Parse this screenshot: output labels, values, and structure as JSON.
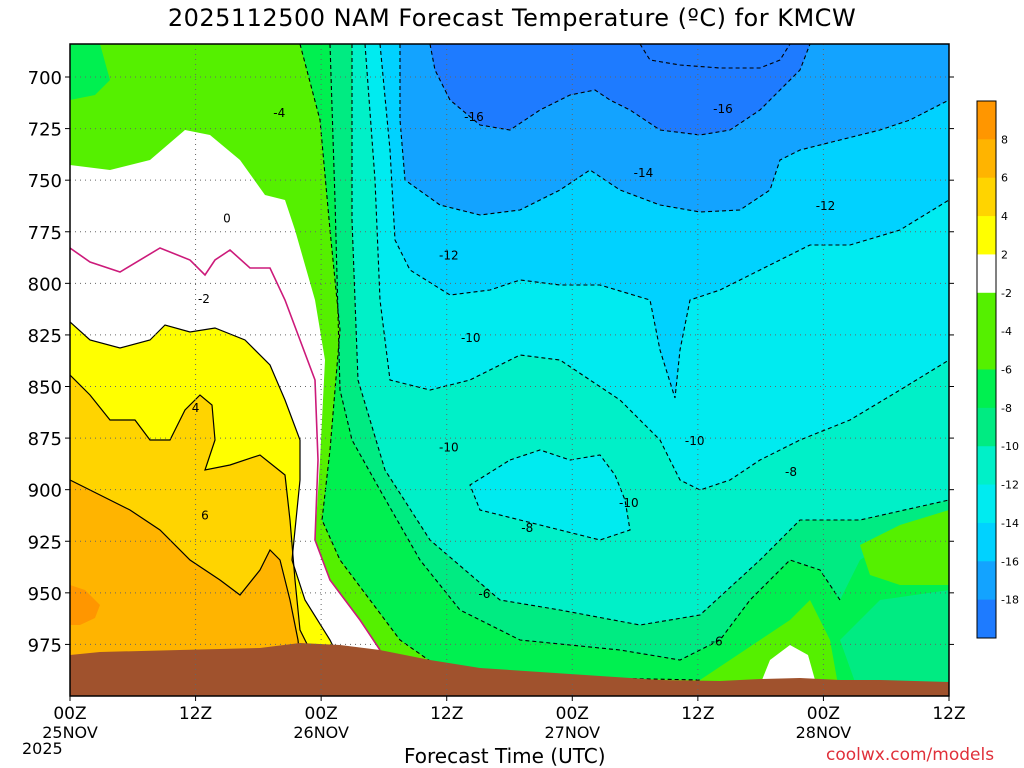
{
  "title": "2025112500 NAM Forecast Temperature (ºC) for KMCW",
  "x_axis_title": "Forecast Time (UTC)",
  "credit": "coolwx.com/models",
  "year_label": "2025",
  "colors": {
    "ground": "#a0522d",
    "c_m18": "#1e7bff",
    "c_m16": "#13a3ff",
    "c_m14": "#00d2ff",
    "c_m12": "#00ebf0",
    "c_m10": "#00f0c8",
    "c_m8": "#00eb82",
    "c_m6": "#00f050",
    "c_m4": "#55f000",
    "c_m2": "#ffffff",
    "c_p2": "#ffff00",
    "c_p4": "#ffd400",
    "c_p6": "#ffb400",
    "c_p8": "#ff9600",
    "zero_line": "#cc1a7a"
  },
  "chart_data": {
    "type": "heatmap",
    "title": "2025112500 NAM Forecast Temperature (ºC) for KMCW",
    "xlabel": "Forecast Time (UTC)",
    "ylabel": "",
    "x_ticks": [
      {
        "hour": 0,
        "label1": "00Z",
        "label2": "25NOV"
      },
      {
        "hour": 12,
        "label1": "12Z",
        "label2": ""
      },
      {
        "hour": 24,
        "label1": "00Z",
        "label2": "26NOV"
      },
      {
        "hour": 36,
        "label1": "12Z",
        "label2": ""
      },
      {
        "hour": 48,
        "label1": "00Z",
        "label2": "27NOV"
      },
      {
        "hour": 60,
        "label1": "12Z",
        "label2": ""
      },
      {
        "hour": 72,
        "label1": "00Z",
        "label2": "28NOV"
      },
      {
        "hour": 84,
        "label1": "12Z",
        "label2": ""
      }
    ],
    "y_ticks": [
      "700",
      "725",
      "750",
      "775",
      "800",
      "825",
      "850",
      "875",
      "900",
      "925",
      "950",
      "975"
    ],
    "y_range_hpa": [
      684,
      1000
    ],
    "x_range_hours": [
      0,
      84
    ],
    "colorbar": {
      "bounds": [
        -20,
        -18,
        -16,
        -14,
        -12,
        -10,
        -8,
        -6,
        -4,
        -2,
        2,
        4,
        6,
        8,
        10
      ],
      "colors": [
        "#1e7bff",
        "#13a3ff",
        "#00d2ff",
        "#00ebf0",
        "#00f0c8",
        "#00eb82",
        "#00f050",
        "#55f000",
        "#55f000",
        "#ffffff",
        "#ffff00",
        "#ffd400",
        "#ffb400",
        "#ff9600"
      ],
      "tick_labels": [
        "8",
        "6",
        "4",
        "2",
        "-2",
        "-4",
        "-6",
        "-8",
        "-10",
        "-12",
        "-14",
        "-16",
        "-18"
      ]
    },
    "contour_labels": [
      {
        "text": "-4",
        "hour": 20.0,
        "p": 717
      },
      {
        "text": "0",
        "hour": 15.0,
        "p": 768
      },
      {
        "text": "-2",
        "hour": 12.8,
        "p": 807
      },
      {
        "text": "4",
        "hour": 12.0,
        "p": 860
      },
      {
        "text": "6",
        "hour": 12.9,
        "p": 912
      },
      {
        "text": "-16",
        "hour": 38.6,
        "p": 719
      },
      {
        "text": "-16",
        "hour": 62.4,
        "p": 715
      },
      {
        "text": "-14",
        "hour": 54.8,
        "p": 746
      },
      {
        "text": "-12",
        "hour": 72.2,
        "p": 762
      },
      {
        "text": "-12",
        "hour": 36.2,
        "p": 786
      },
      {
        "text": "-10",
        "hour": 38.3,
        "p": 826
      },
      {
        "text": "-10",
        "hour": 36.2,
        "p": 879
      },
      {
        "text": "-10",
        "hour": 59.7,
        "p": 876
      },
      {
        "text": "-10",
        "hour": 53.4,
        "p": 906
      },
      {
        "text": "-8",
        "hour": 43.7,
        "p": 918
      },
      {
        "text": "-8",
        "hour": 68.9,
        "p": 891
      },
      {
        "text": "-6",
        "hour": 39.6,
        "p": 950
      },
      {
        "text": "-6",
        "hour": 61.8,
        "p": 973
      }
    ]
  }
}
